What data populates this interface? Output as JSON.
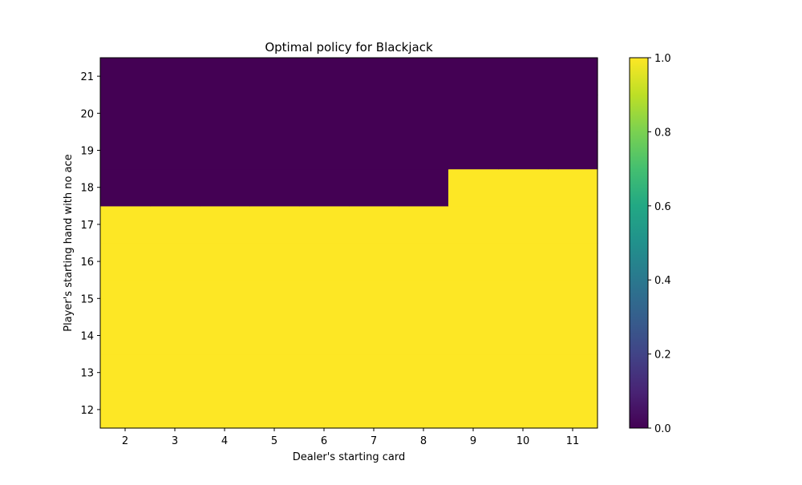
{
  "chart_data": {
    "type": "heatmap",
    "title": "Optimal policy for Blackjack",
    "xlabel": "Dealer's starting card",
    "ylabel": "Player's starting  hand with no ace",
    "x": [
      2,
      3,
      4,
      5,
      6,
      7,
      8,
      9,
      10,
      11
    ],
    "y": [
      12,
      13,
      14,
      15,
      16,
      17,
      18,
      19,
      20,
      21
    ],
    "values": [
      [
        1,
        1,
        1,
        1,
        1,
        1,
        1,
        1,
        1,
        1
      ],
      [
        1,
        1,
        1,
        1,
        1,
        1,
        1,
        1,
        1,
        1
      ],
      [
        1,
        1,
        1,
        1,
        1,
        1,
        1,
        1,
        1,
        1
      ],
      [
        1,
        1,
        1,
        1,
        1,
        1,
        1,
        1,
        1,
        1
      ],
      [
        1,
        1,
        1,
        1,
        1,
        1,
        1,
        1,
        1,
        1
      ],
      [
        1,
        1,
        1,
        1,
        1,
        1,
        1,
        1,
        1,
        1
      ],
      [
        0,
        0,
        0,
        0,
        0,
        0,
        0,
        1,
        1,
        1
      ],
      [
        0,
        0,
        0,
        0,
        0,
        0,
        0,
        0,
        0,
        0
      ],
      [
        0,
        0,
        0,
        0,
        0,
        0,
        0,
        0,
        0,
        0
      ],
      [
        0,
        0,
        0,
        0,
        0,
        0,
        0,
        0,
        0,
        0
      ]
    ],
    "colorbar": {
      "range": [
        0.0,
        1.0
      ],
      "ticks": [
        0.0,
        0.2,
        0.4,
        0.6,
        0.8,
        1.0
      ],
      "tick_labels": [
        "0.0",
        "0.2",
        "0.4",
        "0.6",
        "0.8",
        "1.0"
      ],
      "colormap": "viridis",
      "low_color": "#440154",
      "high_color": "#fde725"
    },
    "grid": false
  }
}
